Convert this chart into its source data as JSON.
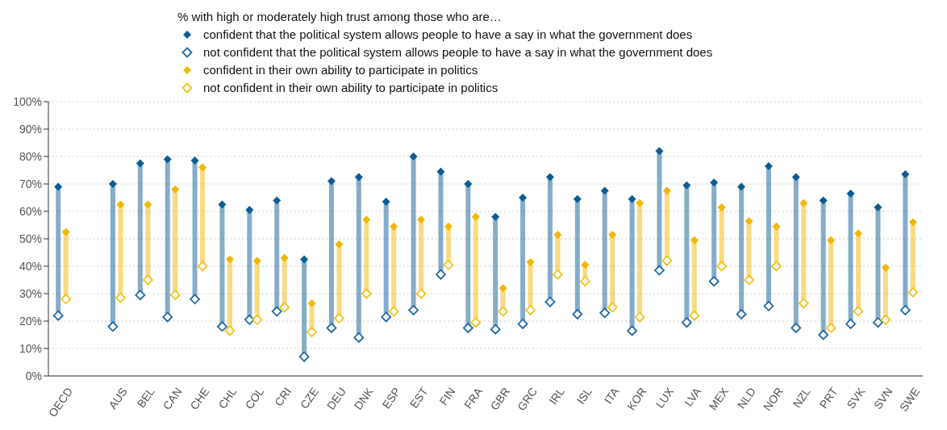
{
  "chart_data": {
    "type": "scatter",
    "legend_title": "% with high or moderately high trust among those who are…",
    "categories": [
      "OECD",
      null,
      "AUS",
      "BEL",
      "CAN",
      "CHE",
      "CHL",
      "COL",
      "CRI",
      "CZE",
      "DEU",
      "DNK",
      "ESP",
      "EST",
      "FIN",
      "FRA",
      "GBR",
      "GRC",
      "IRL",
      "ISL",
      "ITA",
      "KOR",
      "LUX",
      "LVA",
      "MEX",
      "NLD",
      "NOR",
      "NZL",
      "PRT",
      "SVK",
      "SVN",
      "SWE"
    ],
    "series": [
      {
        "name": "confident that the political system allows people to have a say in what the government does",
        "color": "#0b5c94",
        "values": [
          69,
          null,
          70,
          77.5,
          79,
          78.5,
          62.5,
          60.5,
          64,
          42.5,
          71,
          72.5,
          63.5,
          80,
          74.5,
          70,
          58,
          65,
          72.5,
          64.5,
          67.5,
          64.5,
          82,
          69.5,
          70.5,
          69,
          76.5,
          72.5,
          64,
          66.5,
          61.5,
          73.5
        ]
      },
      {
        "name": "not confident that the political system allows people to have a say in what the government does",
        "color": "#1f6aa5",
        "values": [
          22,
          null,
          18,
          29.5,
          21.5,
          28,
          18,
          20.5,
          23.5,
          7,
          17.5,
          14,
          21.5,
          24,
          37,
          17.5,
          17,
          19,
          27,
          22.5,
          23,
          16.5,
          38.5,
          19.5,
          34.5,
          22.5,
          25.5,
          17.5,
          15,
          19,
          19.5,
          24
        ]
      },
      {
        "name": "confident in their own ability to participate in politics",
        "color": "#f2b705",
        "values": [
          52.5,
          null,
          62.5,
          62.5,
          68,
          76,
          42.5,
          42,
          43,
          26.5,
          48,
          57,
          54.5,
          57,
          54.5,
          58,
          32,
          41.5,
          51.5,
          40.5,
          51.5,
          63,
          67.5,
          49.5,
          61.5,
          56.5,
          54.5,
          63,
          49.5,
          52,
          39.5,
          56
        ]
      },
      {
        "name": "not confident in their own ability to participate in politics",
        "color": "#f4c21a",
        "values": [
          28,
          null,
          28.5,
          35,
          29.5,
          40,
          16.5,
          20.5,
          25,
          16,
          21,
          30,
          23.5,
          30,
          40.5,
          19.5,
          23.5,
          24,
          37,
          34.5,
          25,
          21.5,
          42,
          22,
          40,
          35,
          40,
          26.5,
          17.5,
          23.5,
          20.5,
          30.5
        ]
      }
    ],
    "ylim": [
      0,
      100
    ],
    "yticks": [
      {
        "value": 0,
        "label": "0%"
      },
      {
        "value": 10,
        "label": "10%"
      },
      {
        "value": 20,
        "label": "20%"
      },
      {
        "value": 30,
        "label": "30%"
      },
      {
        "value": 40,
        "label": "40%"
      },
      {
        "value": 50,
        "label": "50%"
      },
      {
        "value": 60,
        "label": "60%"
      },
      {
        "value": 70,
        "label": "70%"
      },
      {
        "value": 80,
        "label": "80%"
      },
      {
        "value": 90,
        "label": "90%"
      },
      {
        "value": 100,
        "label": "100%"
      }
    ],
    "grid": "y",
    "legend": "top",
    "marker": "diamond"
  }
}
